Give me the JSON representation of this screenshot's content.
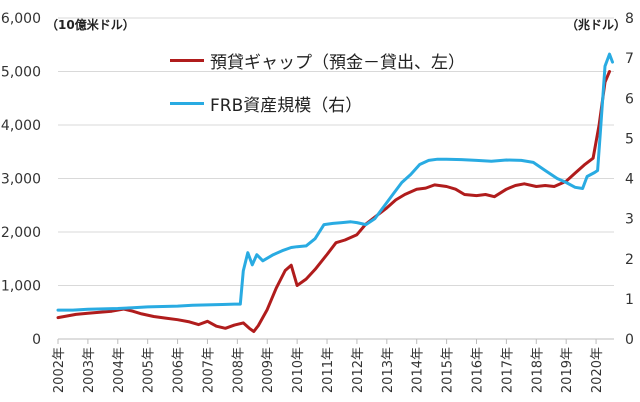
{
  "chart_data": {
    "type": "line",
    "units": {
      "left": "（10億米ドル）",
      "right": "（兆ドル）"
    },
    "x_tick_labels": [
      "2002年",
      "2003年",
      "2004年",
      "2005年",
      "2006年",
      "2007年",
      "2008年",
      "2009年",
      "2010年",
      "2011年",
      "2012年",
      "2013年",
      "2014年",
      "2015年",
      "2016年",
      "2017年",
      "2018年",
      "2019年",
      "2020年"
    ],
    "x_range": [
      2002,
      2020.6
    ],
    "y_left": {
      "range": [
        0,
        6000
      ],
      "ticks": [
        "0",
        "1,000",
        "2,000",
        "3,000",
        "4,000",
        "5,000",
        "6,000"
      ]
    },
    "y_right": {
      "range": [
        0,
        8
      ],
      "ticks": [
        "0",
        "1",
        "2",
        "3",
        "4",
        "5",
        "6",
        "7",
        "8"
      ]
    },
    "grid": "horizontal",
    "legend_placement": "top-left",
    "series": [
      {
        "name": "預貸ギャップ（預金－貸出、左）",
        "axis": "left",
        "color": "#b01c1c",
        "points": [
          [
            2002.0,
            400
          ],
          [
            2002.3,
            430
          ],
          [
            2002.6,
            460
          ],
          [
            2003.0,
            480
          ],
          [
            2003.4,
            500
          ],
          [
            2003.8,
            520
          ],
          [
            2004.2,
            560
          ],
          [
            2004.5,
            520
          ],
          [
            2004.8,
            470
          ],
          [
            2005.2,
            420
          ],
          [
            2005.6,
            390
          ],
          [
            2006.0,
            360
          ],
          [
            2006.4,
            320
          ],
          [
            2006.7,
            270
          ],
          [
            2007.0,
            330
          ],
          [
            2007.3,
            240
          ],
          [
            2007.6,
            200
          ],
          [
            2007.9,
            260
          ],
          [
            2008.2,
            300
          ],
          [
            2008.4,
            200
          ],
          [
            2008.55,
            140
          ],
          [
            2008.7,
            250
          ],
          [
            2009.0,
            550
          ],
          [
            2009.3,
            950
          ],
          [
            2009.6,
            1280
          ],
          [
            2009.8,
            1380
          ],
          [
            2010.0,
            1000
          ],
          [
            2010.3,
            1120
          ],
          [
            2010.6,
            1300
          ],
          [
            2011.0,
            1580
          ],
          [
            2011.3,
            1800
          ],
          [
            2011.6,
            1850
          ],
          [
            2012.0,
            1950
          ],
          [
            2012.3,
            2150
          ],
          [
            2012.6,
            2280
          ],
          [
            2013.0,
            2450
          ],
          [
            2013.3,
            2600
          ],
          [
            2013.6,
            2700
          ],
          [
            2014.0,
            2800
          ],
          [
            2014.3,
            2820
          ],
          [
            2014.6,
            2880
          ],
          [
            2015.0,
            2850
          ],
          [
            2015.3,
            2800
          ],
          [
            2015.6,
            2700
          ],
          [
            2016.0,
            2680
          ],
          [
            2016.3,
            2700
          ],
          [
            2016.6,
            2660
          ],
          [
            2017.0,
            2800
          ],
          [
            2017.3,
            2870
          ],
          [
            2017.6,
            2900
          ],
          [
            2018.0,
            2850
          ],
          [
            2018.3,
            2870
          ],
          [
            2018.6,
            2850
          ],
          [
            2019.0,
            2950
          ],
          [
            2019.3,
            3100
          ],
          [
            2019.6,
            3250
          ],
          [
            2019.9,
            3380
          ],
          [
            2020.1,
            4000
          ],
          [
            2020.3,
            4800
          ],
          [
            2020.45,
            5000
          ]
        ]
      },
      {
        "name": "FRB資産規模（右）",
        "axis": "right",
        "color": "#29abe2",
        "points": [
          [
            2002.0,
            0.72
          ],
          [
            2002.5,
            0.72
          ],
          [
            2003.0,
            0.74
          ],
          [
            2003.5,
            0.75
          ],
          [
            2004.0,
            0.76
          ],
          [
            2004.5,
            0.78
          ],
          [
            2005.0,
            0.8
          ],
          [
            2005.5,
            0.81
          ],
          [
            2006.0,
            0.82
          ],
          [
            2006.5,
            0.84
          ],
          [
            2007.0,
            0.85
          ],
          [
            2007.5,
            0.86
          ],
          [
            2007.9,
            0.87
          ],
          [
            2008.1,
            0.87
          ],
          [
            2008.2,
            1.7
          ],
          [
            2008.35,
            2.15
          ],
          [
            2008.5,
            1.85
          ],
          [
            2008.65,
            2.1
          ],
          [
            2008.85,
            1.95
          ],
          [
            2009.2,
            2.1
          ],
          [
            2009.5,
            2.2
          ],
          [
            2009.8,
            2.28
          ],
          [
            2010.0,
            2.3
          ],
          [
            2010.3,
            2.32
          ],
          [
            2010.6,
            2.5
          ],
          [
            2010.9,
            2.85
          ],
          [
            2011.2,
            2.88
          ],
          [
            2011.5,
            2.9
          ],
          [
            2011.8,
            2.92
          ],
          [
            2012.0,
            2.9
          ],
          [
            2012.3,
            2.85
          ],
          [
            2012.6,
            3.0
          ],
          [
            2012.9,
            3.3
          ],
          [
            2013.2,
            3.6
          ],
          [
            2013.5,
            3.9
          ],
          [
            2013.8,
            4.1
          ],
          [
            2014.1,
            4.35
          ],
          [
            2014.4,
            4.45
          ],
          [
            2014.7,
            4.48
          ],
          [
            2015.0,
            4.48
          ],
          [
            2015.5,
            4.47
          ],
          [
            2016.0,
            4.45
          ],
          [
            2016.5,
            4.43
          ],
          [
            2017.0,
            4.46
          ],
          [
            2017.5,
            4.45
          ],
          [
            2017.9,
            4.4
          ],
          [
            2018.3,
            4.2
          ],
          [
            2018.7,
            4.0
          ],
          [
            2019.0,
            3.9
          ],
          [
            2019.3,
            3.78
          ],
          [
            2019.55,
            3.75
          ],
          [
            2019.7,
            4.05
          ],
          [
            2019.95,
            4.15
          ],
          [
            2020.05,
            4.2
          ],
          [
            2020.15,
            5.2
          ],
          [
            2020.3,
            6.8
          ],
          [
            2020.45,
            7.1
          ],
          [
            2020.55,
            6.9
          ]
        ]
      }
    ]
  }
}
